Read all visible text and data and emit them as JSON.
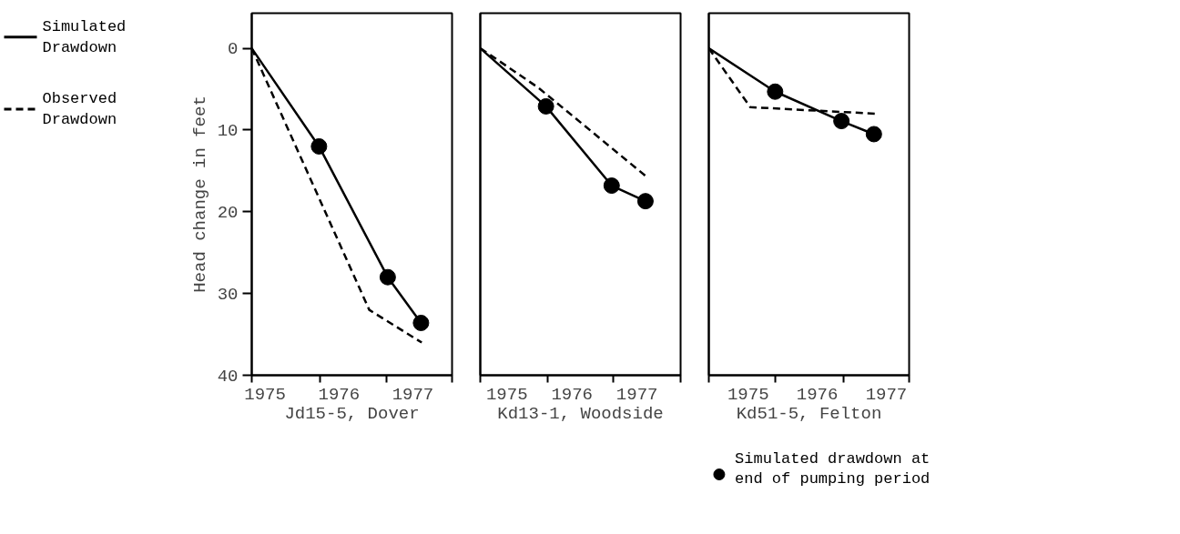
{
  "chart_data": [
    {
      "type": "line",
      "xlabel": "Jd15-5, Dover",
      "ylabel": "Head change in feet",
      "xlim": [
        1974.82,
        1977.53
      ],
      "ylim": [
        40,
        -4.3
      ],
      "xticks": [
        {
          "value": 1974.82,
          "label": null
        },
        {
          "value": 1975.75,
          "label": null
        },
        {
          "value": 1976.64,
          "label": null
        },
        {
          "value": 1977.53,
          "label": null
        },
        1975,
        1976,
        1977
      ],
      "yticks": [
        0,
        10,
        20,
        30,
        40
      ],
      "legend": "left",
      "series": [
        {
          "name": "Simulated Drawdown",
          "color": "#000000",
          "line_style": "solid",
          "x": [
            1974.82,
            1975.73,
            1976.66,
            1977.11
          ],
          "values": [
            0,
            12,
            28,
            33.6
          ]
        },
        {
          "name": "Observed Drawdown",
          "color": "#000000",
          "line_style": "dashed",
          "x": [
            1974.82,
            1976.41,
            1977.12
          ],
          "values": [
            0,
            32,
            36
          ]
        },
        {
          "color": "#000000",
          "type": "scatter",
          "marker": "circle",
          "x": [
            1975.73,
            1976.66,
            1977.11
          ],
          "values": [
            12,
            28,
            33.6
          ]
        }
      ]
    },
    {
      "type": "line",
      "xlabel": "Kd13-1, Woodside",
      "xlim": [
        1974.59,
        1977.67
      ],
      "ylim": [
        40,
        -4.3
      ],
      "tick_labels": "x",
      "xticks": [
        {
          "value": 1974.59,
          "label": null
        },
        {
          "value": 1975.63,
          "label": null
        },
        {
          "value": 1976.64,
          "label": null
        },
        {
          "value": 1977.67,
          "label": null
        },
        1975,
        1976,
        1977
      ],
      "series": [
        {
          "color": "#000000",
          "line_style": "solid",
          "x": [
            1974.59,
            1975.6,
            1976.61,
            1977.13
          ],
          "values": [
            0,
            7.1,
            16.8,
            18.7
          ]
        },
        {
          "color": "#000000",
          "line_style": "dashed",
          "x": [
            1974.59,
            1974.89,
            1975.48,
            1977.13
          ],
          "values": [
            0,
            1.6,
            4.8,
            15.6
          ]
        },
        {
          "color": "#000000",
          "type": "scatter",
          "marker": "circle",
          "x": [
            1975.6,
            1976.61,
            1977.13
          ],
          "values": [
            7.1,
            16.8,
            18.7
          ]
        }
      ]
    },
    {
      "type": "line",
      "xlabel": "Kd51-5, Felton",
      "xlim": [
        1974.43,
        1977.33
      ],
      "ylim": [
        40,
        -4.3
      ],
      "tick_labels": "x",
      "xticks": [
        {
          "value": 1974.43,
          "label": null
        },
        {
          "value": 1975.39,
          "label": null
        },
        {
          "value": 1976.38,
          "label": null
        },
        {
          "value": 1977.33,
          "label": null
        },
        1975,
        1976,
        1977
      ],
      "legend": "bottom right",
      "series": [
        {
          "color": "#000000",
          "line_style": "solid",
          "x": [
            1974.43,
            1975.39,
            1976.35,
            1976.82
          ],
          "values": [
            0,
            5.3,
            8.9,
            10.5
          ]
        },
        {
          "color": "#000000",
          "line_style": "dashed",
          "x": [
            1974.43,
            1975.03,
            1976.85
          ],
          "values": [
            0,
            7.2,
            8.0
          ]
        },
        {
          "name": "Simulated drawdown at end of pumping period",
          "color": "#000000",
          "type": "scatter",
          "marker": "circle",
          "x": [
            1975.39,
            1976.35,
            1976.82
          ],
          "values": [
            5.3,
            8.9,
            10.5
          ]
        }
      ]
    }
  ]
}
